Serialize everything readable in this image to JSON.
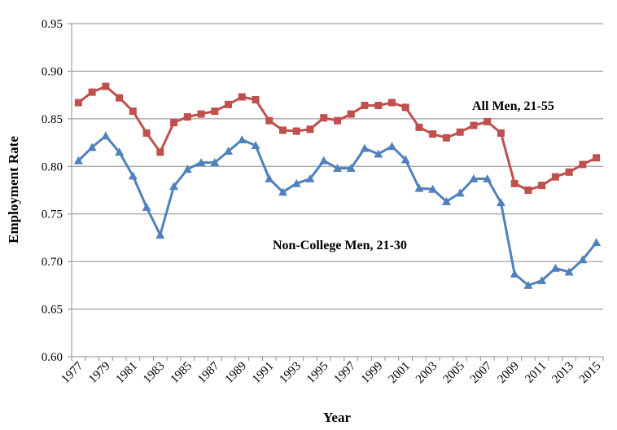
{
  "chart_data": {
    "type": "line",
    "title": "",
    "xlabel": "Year",
    "ylabel": "Employment Rate",
    "x": [
      1977,
      1978,
      1979,
      1980,
      1981,
      1982,
      1983,
      1984,
      1985,
      1986,
      1987,
      1988,
      1989,
      1990,
      1991,
      1992,
      1993,
      1994,
      1995,
      1996,
      1997,
      1998,
      1999,
      2000,
      2001,
      2002,
      2003,
      2004,
      2005,
      2006,
      2007,
      2008,
      2009,
      2010,
      2011,
      2012,
      2013,
      2014,
      2015
    ],
    "xticks": [
      "1977",
      "1979",
      "1981",
      "1983",
      "1985",
      "1987",
      "1989",
      "1991",
      "1993",
      "1995",
      "1997",
      "1999",
      "2001",
      "2003",
      "2005",
      "2007",
      "2009",
      "2011",
      "2013",
      "2015"
    ],
    "yticks": [
      "0.60",
      "0.65",
      "0.70",
      "0.75",
      "0.80",
      "0.85",
      "0.90",
      "0.95"
    ],
    "ylim": [
      0.6,
      0.95
    ],
    "grid": "horizontal",
    "series": [
      {
        "name": "All Men, 21-55",
        "color": "#c0504d",
        "marker": "square",
        "values": [
          0.867,
          0.878,
          0.884,
          0.872,
          0.858,
          0.835,
          0.815,
          0.846,
          0.852,
          0.855,
          0.858,
          0.865,
          0.873,
          0.87,
          0.848,
          0.838,
          0.837,
          0.839,
          0.851,
          0.848,
          0.855,
          0.864,
          0.864,
          0.867,
          0.862,
          0.841,
          0.834,
          0.83,
          0.836,
          0.843,
          0.847,
          0.835,
          0.782,
          0.775,
          0.78,
          0.789,
          0.794,
          0.802,
          0.809
        ]
      },
      {
        "name": "Non-College Men, 21-30",
        "color": "#4f81bd",
        "marker": "triangle",
        "values": [
          0.806,
          0.82,
          0.832,
          0.815,
          0.79,
          0.757,
          0.728,
          0.779,
          0.797,
          0.804,
          0.804,
          0.816,
          0.828,
          0.822,
          0.787,
          0.773,
          0.782,
          0.787,
          0.806,
          0.798,
          0.798,
          0.819,
          0.813,
          0.821,
          0.807,
          0.777,
          0.776,
          0.763,
          0.772,
          0.787,
          0.787,
          0.762,
          0.687,
          0.675,
          0.68,
          0.693,
          0.689,
          0.702,
          0.72
        ]
      }
    ]
  }
}
